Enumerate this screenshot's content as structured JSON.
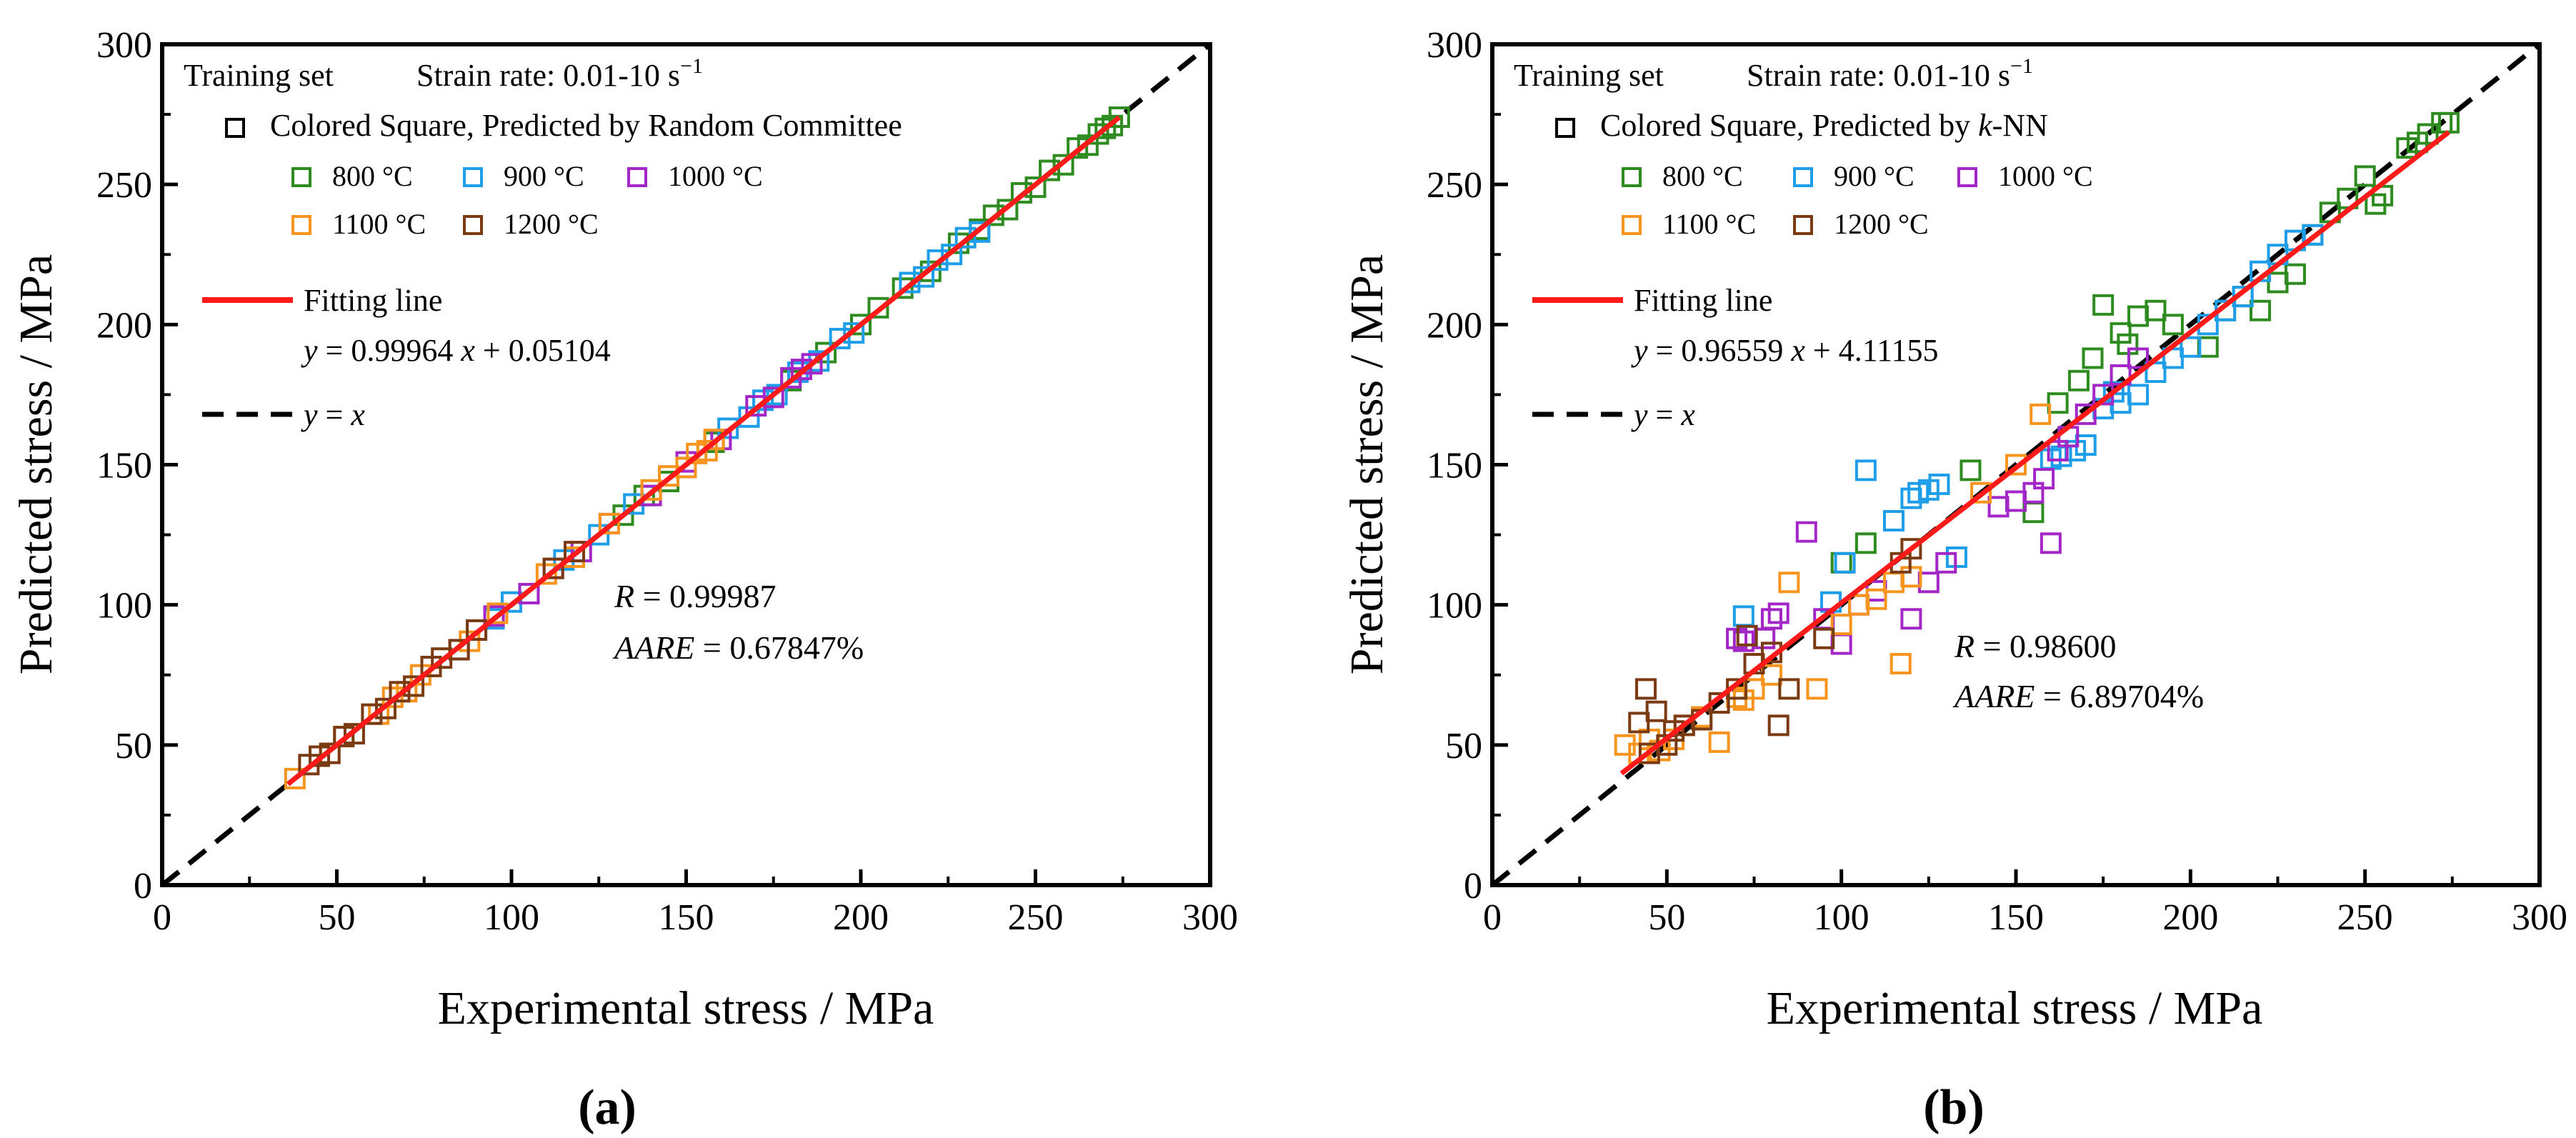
{
  "chart_data": [
    {
      "type": "scatter",
      "panel_label": "(a)",
      "xlabel": "Experimental stress / MPa",
      "ylabel": "Predicted stress / MPa",
      "xlim": [
        0,
        300
      ],
      "ylim": [
        0,
        300
      ],
      "ticks": [
        "0",
        "50",
        "100",
        "150",
        "200",
        "250",
        "300"
      ],
      "legend": {
        "set_name": "Training set",
        "strain_rate": "Strain rate: 0.01-10 s",
        "strain_rate_exp": "−1",
        "marker_desc": "Colored Square, Predicted by Random Committee",
        "temps": [
          "800 °C",
          "900 °C",
          "1000 °C",
          "1100 °C",
          "1200 °C"
        ],
        "fit_label": "Fitting line",
        "fit_eq_y": "y",
        "fit_eq_rest": " = 0.99964 ",
        "fit_eq_x": "x",
        "fit_eq_tail": " + 0.05104",
        "ident_y": "y",
        "ident_mid": " = ",
        "ident_x": "x"
      },
      "stats": {
        "r_label": "R",
        "r_value": " = 0.99987",
        "aare_label": "AARE",
        "aare_value": " = 0.67847%"
      },
      "fit": {
        "slope": 0.99964,
        "intercept": 0.05104,
        "x_range": [
          36,
          274
        ]
      },
      "colors": {
        "800": "#2e8b1f",
        "900": "#1e9de8",
        "1000": "#a326c7",
        "1100": "#f7941d",
        "1200": "#7a3a12",
        "fit": "#ff1a1a"
      },
      "series": [
        {
          "name": "800 °C",
          "x": [
            132,
            138,
            145,
            158,
            180,
            190,
            200,
            205,
            212,
            220,
            228,
            234,
            238,
            242,
            246,
            250,
            254,
            258,
            262,
            265,
            268,
            270,
            272,
            274
          ],
          "y": [
            132,
            139,
            144,
            158,
            180,
            190,
            200,
            206,
            213,
            219,
            229,
            234,
            239,
            241,
            247,
            249,
            255,
            257,
            263,
            264,
            268,
            270,
            271,
            274
          ]
        },
        {
          "name": "900 °C",
          "x": [
            90,
            95,
            100,
            105,
            115,
            125,
            135,
            150,
            162,
            168,
            172,
            176,
            182,
            188,
            194,
            198,
            214,
            218,
            222,
            226,
            230,
            234
          ],
          "y": [
            91,
            95,
            101,
            104,
            116,
            125,
            136,
            149,
            163,
            167,
            173,
            175,
            183,
            187,
            195,
            197,
            215,
            217,
            223,
            225,
            231,
            233
          ]
        },
        {
          "name": "1000 °C",
          "x": [
            85,
            95,
            105,
            112,
            120,
            128,
            140,
            150,
            160,
            170,
            175,
            180,
            183,
            186
          ],
          "y": [
            84,
            96,
            104,
            113,
            119,
            129,
            139,
            151,
            159,
            171,
            174,
            181,
            184,
            186
          ]
        },
        {
          "name": "1100 °C",
          "x": [
            38,
            48,
            52,
            62,
            66,
            70,
            74,
            88,
            96,
            110,
            118,
            128,
            140,
            145,
            150,
            153,
            156,
            158
          ],
          "y": [
            38,
            47,
            53,
            61,
            67,
            69,
            75,
            87,
            97,
            111,
            117,
            129,
            141,
            146,
            149,
            154,
            155,
            159
          ]
        },
        {
          "name": "1200 °C",
          "x": [
            42,
            45,
            48,
            52,
            55,
            60,
            64,
            68,
            72,
            77,
            80,
            85,
            90,
            112,
            118
          ],
          "y": [
            43,
            46,
            47,
            53,
            54,
            61,
            63,
            69,
            71,
            78,
            81,
            84,
            91,
            113,
            119
          ]
        }
      ]
    },
    {
      "type": "scatter",
      "panel_label": "(b)",
      "xlabel": "Experimental stress / MPa",
      "ylabel": "Predicted stress / MPa",
      "xlim": [
        0,
        300
      ],
      "ylim": [
        0,
        300
      ],
      "ticks": [
        "0",
        "50",
        "100",
        "150",
        "200",
        "250",
        "300"
      ],
      "legend": {
        "set_name": "Training set",
        "strain_rate": "Strain rate: 0.01-10 s",
        "strain_rate_exp": "−1",
        "marker_desc_a": "Colored Square, Predicted by ",
        "marker_desc_k": "k",
        "marker_desc_b": "-NN",
        "temps": [
          "800 °C",
          "900 °C",
          "1000 °C",
          "1100 °C",
          "1200 °C"
        ],
        "fit_label": "Fitting line",
        "fit_eq_y": "y",
        "fit_eq_rest": " = 0.96559 ",
        "fit_eq_x": "x",
        "fit_eq_tail": " + 4.11155",
        "ident_y": "y",
        "ident_mid": " = ",
        "ident_x": "x"
      },
      "stats": {
        "r_label": "R",
        "r_value": " = 0.98600",
        "aare_label": "AARE",
        "aare_value": " = 6.89704%"
      },
      "fit": {
        "slope": 0.96559,
        "intercept": 4.11155,
        "x_range": [
          37,
          274
        ]
      },
      "colors": {
        "800": "#2e8b1f",
        "900": "#1e9de8",
        "1000": "#a326c7",
        "1100": "#f7941d",
        "1200": "#7a3a12",
        "fit": "#ff1a1a"
      },
      "series": [
        {
          "name": "800 °C",
          "x": [
            100,
            107,
            137,
            155,
            162,
            168,
            172,
            175,
            180,
            182,
            185,
            190,
            195,
            205,
            210,
            215,
            220,
            225,
            230,
            235,
            240,
            245,
            250,
            253,
            255,
            262,
            265,
            268,
            272,
            274
          ],
          "y": [
            115,
            122,
            148,
            133,
            172,
            180,
            188,
            207,
            197,
            193,
            203,
            205,
            200,
            192,
            205,
            210,
            205,
            215,
            218,
            232,
            240,
            245,
            253,
            243,
            246,
            263,
            265,
            268,
            272,
            272
          ]
        },
        {
          "name": "900 °C",
          "x": [
            72,
            97,
            101,
            107,
            115,
            120,
            122,
            125,
            128,
            133,
            150,
            160,
            163,
            167,
            170,
            175,
            178,
            180,
            185,
            190,
            195,
            200,
            205,
            210,
            215,
            220,
            225,
            230,
            235
          ],
          "y": [
            96,
            101,
            115,
            148,
            130,
            138,
            140,
            141,
            143,
            117,
            150,
            152,
            153,
            155,
            157,
            170,
            176,
            172,
            175,
            183,
            188,
            192,
            200,
            205,
            210,
            219,
            225,
            230,
            232
          ]
        },
        {
          "name": "1000 °C",
          "x": [
            70,
            72,
            78,
            80,
            82,
            90,
            95,
            100,
            105,
            110,
            120,
            125,
            130,
            145,
            150,
            155,
            158,
            160,
            162,
            165,
            170,
            175,
            180,
            185
          ],
          "y": [
            88,
            87,
            88,
            95,
            97,
            126,
            95,
            86,
            100,
            105,
            95,
            108,
            115,
            135,
            137,
            140,
            145,
            122,
            155,
            160,
            168,
            175,
            182,
            188
          ]
        },
        {
          "name": "1100 °C",
          "x": [
            38,
            42,
            45,
            48,
            52,
            55,
            60,
            65,
            70,
            72,
            75,
            80,
            85,
            93,
            100,
            105,
            110,
            115,
            117,
            120,
            140,
            150,
            157
          ],
          "y": [
            50,
            47,
            52,
            48,
            52,
            57,
            60,
            51,
            67,
            66,
            70,
            75,
            108,
            70,
            93,
            100,
            102,
            108,
            79,
            110,
            140,
            150,
            168
          ]
        },
        {
          "name": "1200 °C",
          "x": [
            42,
            44,
            45,
            47,
            50,
            52,
            55,
            60,
            65,
            70,
            73,
            75,
            80,
            82,
            85,
            95,
            117,
            120
          ],
          "y": [
            58,
            70,
            47,
            62,
            50,
            55,
            57,
            59,
            65,
            70,
            89,
            79,
            83,
            57,
            70,
            88,
            115,
            120
          ]
        }
      ]
    }
  ]
}
